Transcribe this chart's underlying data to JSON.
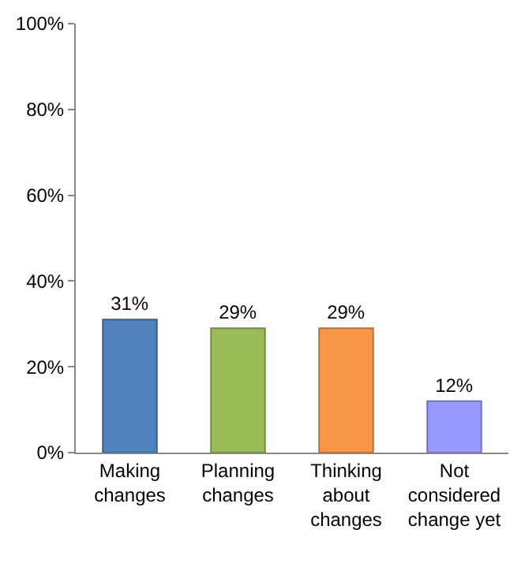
{
  "chart_data": {
    "type": "bar",
    "categories": [
      "Making changes",
      "Planning changes",
      "Thinking about changes",
      "Not considered change yet"
    ],
    "values": [
      31,
      29,
      29,
      12
    ],
    "colors": [
      "#4f81bd",
      "#9bbb59",
      "#f79646",
      "#9999ff"
    ],
    "value_labels": [
      "31%",
      "29%",
      "29%",
      "12%"
    ],
    "ylim": [
      0,
      100
    ],
    "yticks": [
      {
        "value": 0,
        "label": "0%"
      },
      {
        "value": 20,
        "label": "20%"
      },
      {
        "value": 40,
        "label": "40%"
      },
      {
        "value": 60,
        "label": "60%"
      },
      {
        "value": 80,
        "label": "80%"
      },
      {
        "value": 100,
        "label": "100%"
      }
    ]
  }
}
